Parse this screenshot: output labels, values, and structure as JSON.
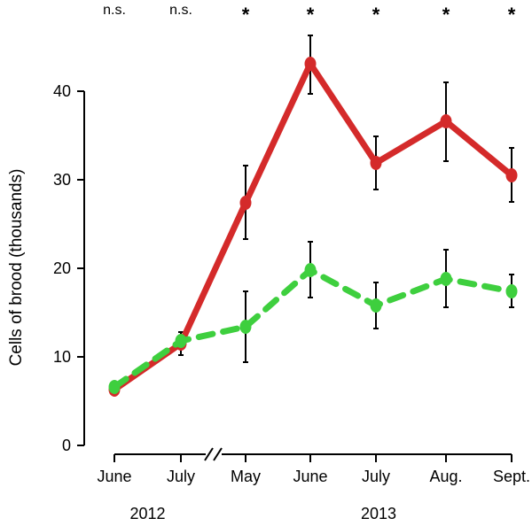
{
  "chart_data": {
    "type": "line",
    "ylabel": "Cells of brood (thousands)",
    "xlabel": "",
    "ylim": [
      0,
      40
    ],
    "yticks": [
      0,
      10,
      20,
      30,
      40
    ],
    "categories": [
      "June",
      "July",
      "May",
      "June",
      "July",
      "Aug.",
      "Sept."
    ],
    "year_groups": [
      {
        "label": "2012",
        "from": 0,
        "to": 1
      },
      {
        "label": "2013",
        "from": 2,
        "to": 6
      }
    ],
    "axis_break_after_index": 1,
    "significance": [
      "n.s.",
      "n.s.",
      "*",
      "*",
      "*",
      "*",
      "*"
    ],
    "series": [
      {
        "color": "#d42a2a",
        "line_style": "solid",
        "values": [
          6.3,
          11.5,
          27.4,
          43.1,
          31.9,
          36.6,
          30.5
        ],
        "error": [
          null,
          [
            10.2,
            12.8
          ],
          [
            23.3,
            31.6
          ],
          [
            39.7,
            46.3
          ],
          [
            28.9,
            34.9
          ],
          [
            32.1,
            41.0
          ],
          [
            27.5,
            33.6
          ]
        ]
      },
      {
        "color": "#3ecf3e",
        "line_style": "dashed",
        "values": [
          6.6,
          11.8,
          13.4,
          19.8,
          15.8,
          18.8,
          17.4
        ],
        "error": [
          null,
          null,
          [
            9.4,
            17.4
          ],
          [
            16.7,
            23.0
          ],
          [
            13.2,
            18.4
          ],
          [
            15.6,
            22.1
          ],
          [
            15.6,
            19.3
          ]
        ]
      }
    ]
  }
}
